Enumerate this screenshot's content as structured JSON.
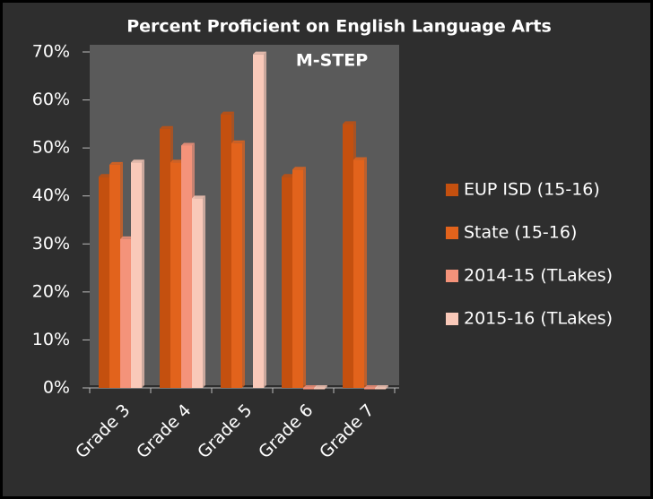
{
  "chart_data": {
    "type": "bar",
    "title": "Percent  Proficient on English Language Arts",
    "subtitle": "M-STEP",
    "categories": [
      "Grade 3",
      "Grade 4",
      "Grade 5",
      "Grade 6",
      "Grade 7"
    ],
    "series": [
      {
        "name": "EUP ISD (15-16)",
        "color": "#c4500f",
        "values": [
          44,
          54,
          57,
          44,
          55
        ]
      },
      {
        "name": "State (15-16)",
        "color": "#e2631c",
        "values": [
          46.5,
          47,
          51,
          45.5,
          47.5
        ]
      },
      {
        "name": "2014-15 (TLakes)",
        "color": "#f4937a",
        "values": [
          31,
          50.5,
          null,
          0,
          0
        ]
      },
      {
        "name": "2015-16 (TLakes)",
        "color": "#f9c9b9",
        "values": [
          47,
          39.5,
          69.5,
          0,
          0
        ]
      }
    ],
    "ylim": [
      0,
      70
    ],
    "yticks": [
      {
        "value": 0,
        "label": "0%"
      },
      {
        "value": 10,
        "label": "10%"
      },
      {
        "value": 20,
        "label": "20%"
      },
      {
        "value": 30,
        "label": "30%"
      },
      {
        "value": 40,
        "label": "40%"
      },
      {
        "value": 50,
        "label": "50%"
      },
      {
        "value": 60,
        "label": "60%"
      },
      {
        "value": 70,
        "label": "70%"
      }
    ],
    "legend": "right"
  }
}
